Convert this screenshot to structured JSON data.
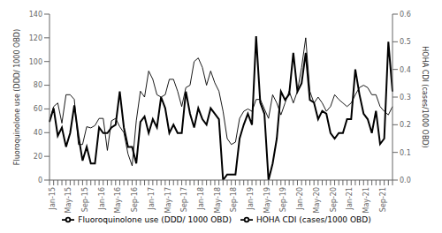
{
  "chart_data": {
    "type": "line",
    "categories": [
      "Jan-15",
      null,
      null,
      null,
      "May-15",
      null,
      null,
      null,
      "Sep-15",
      null,
      null,
      null,
      "Jan-16",
      null,
      null,
      null,
      "May-16",
      null,
      null,
      null,
      "Sep-16",
      null,
      null,
      null,
      "Jan-17",
      null,
      null,
      null,
      "May-17",
      null,
      null,
      null,
      "Sep-17",
      null,
      null,
      null,
      "Jan-18",
      null,
      null,
      null,
      "May-18",
      null,
      null,
      null,
      "Sep-18",
      null,
      null,
      null,
      "Jan-19",
      null,
      null,
      null,
      "May-19",
      null,
      null,
      null,
      "Sep-19",
      null,
      null,
      null,
      "Jan-20",
      null,
      null,
      null,
      "May-20",
      null,
      null,
      null,
      "Sep-20",
      null,
      null,
      null,
      "Jan-21",
      null,
      null,
      null,
      "May-21",
      null,
      null,
      null,
      "Sep-21",
      null,
      null,
      null
    ],
    "series": [
      {
        "name": "Fluoroquinolone use (DDD/ 1000 OBD)",
        "color": "#000000",
        "axis": "y",
        "values": [
          50,
          62,
          65,
          48,
          72,
          72,
          68,
          30,
          30,
          45,
          44,
          46,
          52,
          52,
          25,
          50,
          52,
          45,
          40,
          22,
          12,
          50,
          75,
          70,
          92,
          85,
          72,
          70,
          72,
          85,
          85,
          75,
          62,
          78,
          80,
          100,
          103,
          95,
          80,
          92,
          82,
          75,
          58,
          35,
          30,
          32,
          52,
          58,
          60,
          58,
          68,
          68,
          60,
          52,
          72,
          65,
          55,
          65,
          75,
          65,
          75,
          95,
          120,
          75,
          65,
          70,
          65,
          58,
          62,
          72,
          68,
          65,
          62,
          65,
          72,
          78,
          80,
          78,
          72,
          72,
          62,
          58,
          55,
          62
        ]
      },
      {
        "name": "HOHA CDI (cases/1000 OBD)",
        "color": "#000000",
        "axis": "y2",
        "values": [
          0.21,
          0.26,
          0.16,
          0.19,
          0.12,
          0.17,
          0.27,
          0.16,
          0.07,
          0.12,
          0.06,
          0.06,
          0.19,
          0.17,
          0.17,
          0.19,
          0.2,
          0.32,
          0.19,
          0.12,
          0.12,
          0.06,
          0.21,
          0.23,
          0.17,
          0.22,
          0.19,
          0.3,
          0.26,
          0.17,
          0.2,
          0.17,
          0.17,
          0.32,
          0.24,
          0.19,
          0.26,
          0.22,
          0.2,
          0.26,
          0.24,
          0.22,
          0.0,
          0.02,
          0.02,
          0.02,
          0.15,
          0.2,
          0.24,
          0.2,
          0.52,
          0.28,
          0.24,
          0.0,
          0.06,
          0.15,
          0.32,
          0.29,
          0.31,
          0.46,
          0.32,
          0.35,
          0.46,
          0.29,
          0.28,
          0.22,
          0.25,
          0.24,
          0.17,
          0.15,
          0.17,
          0.17,
          0.22,
          0.22,
          0.4,
          0.31,
          0.24,
          0.22,
          0.17,
          0.25,
          0.13,
          0.15,
          0.5,
          0.32
        ]
      }
    ],
    "ylabel": "Fluoroquinolone use (DDD/ 1000 OBD)",
    "y2label": "HOHA CDI (cases/1000 OBD)",
    "ylim": [
      0,
      140
    ],
    "yticks": [
      0,
      20,
      40,
      60,
      80,
      100,
      120,
      140
    ],
    "y2lim": [
      0,
      0.6
    ],
    "y2ticks": [
      {
        "value": 0,
        "label": "0.0"
      },
      0.1,
      0.2,
      0.3,
      0.4,
      0.5,
      0.6
    ],
    "grid": false,
    "legend": "bottom"
  }
}
